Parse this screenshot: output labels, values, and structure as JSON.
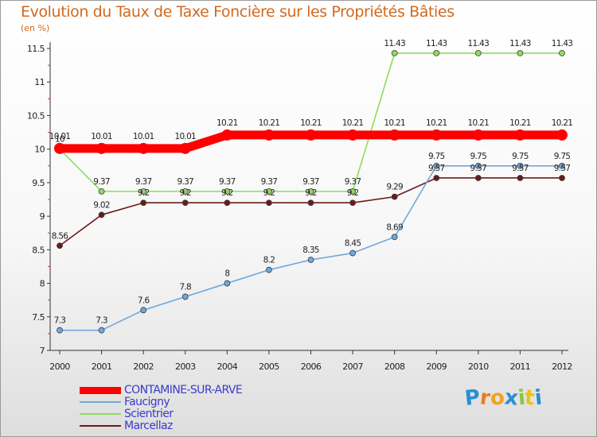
{
  "chart_data": {
    "type": "line",
    "title": "Evolution du Taux de Taxe Foncière sur les Propriétés Bâties",
    "ylabel": "(en %)",
    "xlabel": "",
    "x": [
      "2000",
      "2001",
      "2002",
      "2003",
      "2004",
      "2005",
      "2006",
      "2007",
      "2008",
      "2009",
      "2010",
      "2011",
      "2012"
    ],
    "ylim": [
      7,
      11.5
    ],
    "yticks": [
      "7",
      "7.5",
      "8",
      "8.5",
      "9",
      "9.5",
      "10",
      "10.5",
      "11",
      "11.5"
    ],
    "grid": false,
    "legend_position": "bottom-left",
    "series": [
      {
        "name": "CONTAMINE-SUR-ARVE",
        "color": "#ff0000",
        "values": [
          10.01,
          10.01,
          10.01,
          10.01,
          10.21,
          10.21,
          10.21,
          10.21,
          10.21,
          10.21,
          10.21,
          10.21,
          10.21
        ],
        "labels": [
          "10.01",
          "10.01",
          "10.01",
          "10.01",
          "10.21",
          "10.21",
          "10.21",
          "10.21",
          "10.21",
          "10.21",
          "10.21",
          "10.21",
          "10.21"
        ]
      },
      {
        "name": "Faucigny",
        "color": "#6fa8dc",
        "values": [
          7.3,
          7.3,
          7.6,
          7.8,
          8,
          8.2,
          8.35,
          8.45,
          8.69,
          9.75,
          9.75,
          9.75,
          9.75
        ],
        "labels": [
          "7.3",
          "7.3",
          "7.6",
          "7.8",
          "8",
          "8.2",
          "8.35",
          "8.45",
          "8.69",
          "9.75",
          "9.75",
          "9.75",
          "9.75"
        ]
      },
      {
        "name": "Scientrier",
        "color": "#8fdc5a",
        "values": [
          10,
          9.37,
          9.37,
          9.37,
          9.37,
          9.37,
          9.37,
          9.37,
          11.43,
          11.43,
          11.43,
          11.43,
          11.43
        ],
        "labels": [
          "10",
          "9.37",
          "9.37",
          "9.37",
          "9.37",
          "9.37",
          "9.37",
          "9.37",
          "11.43",
          "11.43",
          "11.43",
          "11.43",
          "11.43"
        ]
      },
      {
        "name": "Marcellaz",
        "color": "#6b1a1a",
        "values": [
          8.56,
          9.02,
          9.2,
          9.2,
          9.2,
          9.2,
          9.2,
          9.2,
          9.29,
          9.57,
          9.57,
          9.57,
          9.57
        ],
        "labels": [
          "8.56",
          "9.02",
          "9.2",
          "9.2",
          "9.2",
          "9.2",
          "9.2",
          "9.2",
          "9.29",
          "9.57",
          "9.57",
          "9.57",
          "9.57"
        ]
      }
    ]
  },
  "logo": {
    "letters": [
      "P",
      "r",
      "o",
      "x",
      "i",
      "t",
      "i"
    ],
    "colors": [
      "#2a8fd4",
      "#f07a1e",
      "#f0a21e",
      "#2a8fd4",
      "#8cc63f",
      "#e8c21e",
      "#2a8fd4"
    ]
  }
}
